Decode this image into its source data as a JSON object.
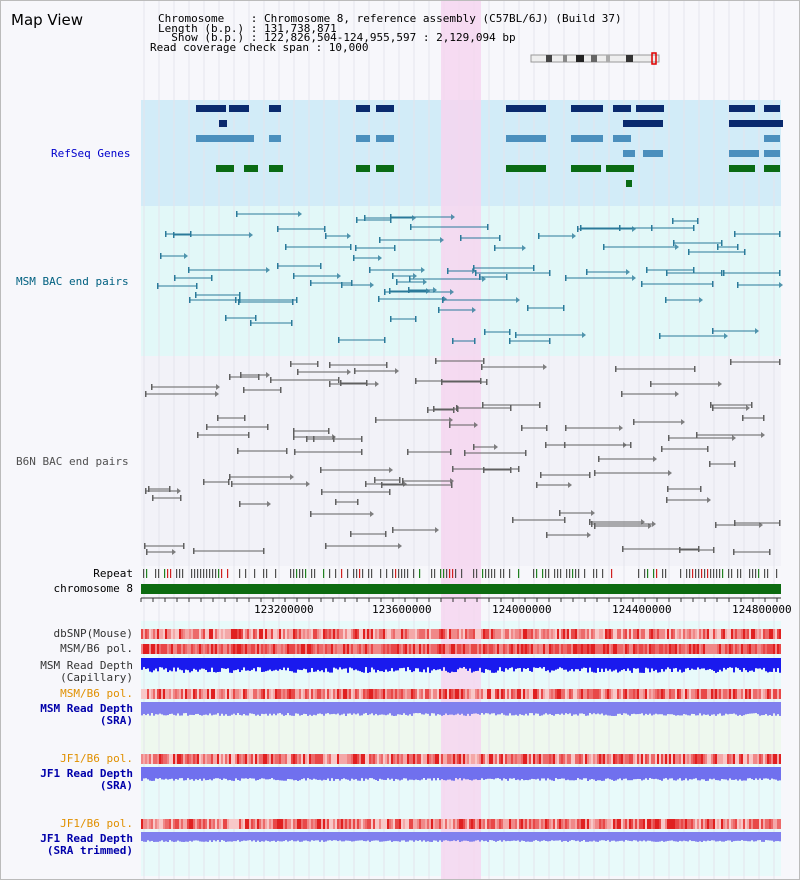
{
  "page": {
    "title": "Map View"
  },
  "info": {
    "line1": "Chromosome    : Chromosome 8, reference assembly (C57BL/6J) (Build 37)",
    "line2": "Length (b.p.) : 131,738,871",
    "line3": "  Show (b.p.) : 122,826,504-124,955,597 : 2,129,094 bp",
    "line4": "Read coverage check span : 10,000"
  },
  "tracks": {
    "refseq": "RefSeq Genes",
    "msm_bac": "MSM BAC end pairs",
    "b6n_bac": "B6N BAC end pairs",
    "repeat": "Repeat",
    "chromosome": "chromosome 8",
    "dbsnp": "dbSNP(Mouse)",
    "msm_b6_pol_1": "MSM/B6 pol.",
    "msm_read_depth_cap_1": "MSM Read Depth",
    "msm_read_depth_cap_2": "(Capillary)",
    "msm_b6_pol_2": "MSM/B6 pol.",
    "msm_read_depth_sra_1": "MSM Read Depth",
    "msm_read_depth_sra_2": "(SRA)",
    "jf1_b6_pol_1": "JF1/B6 pol.",
    "jf1_read_depth_sra_1": "JF1 Read Depth",
    "jf1_read_depth_sra_2": "(SRA)",
    "jf1_b6_pol_2": "JF1/B6 pol.",
    "jf1_read_depth_trim_1": "JF1 Read Depth",
    "jf1_read_depth_trim_2": "(SRA trimmed)"
  },
  "axis": {
    "ticks": [
      "123200000",
      "123600000",
      "124000000",
      "124400000",
      "124800000"
    ]
  },
  "colors": {
    "refseq_bg": "#d2ecf8",
    "msm_bg": "#e2f8f8",
    "b6n_bg": "#f2f2f8",
    "highlight": "#f6d6f0",
    "refseq_label": "#0000cc",
    "msm_label": "#006080",
    "b6n_label": "#505050",
    "orange_label": "#e09000",
    "blue_label": "#0000aa"
  }
}
